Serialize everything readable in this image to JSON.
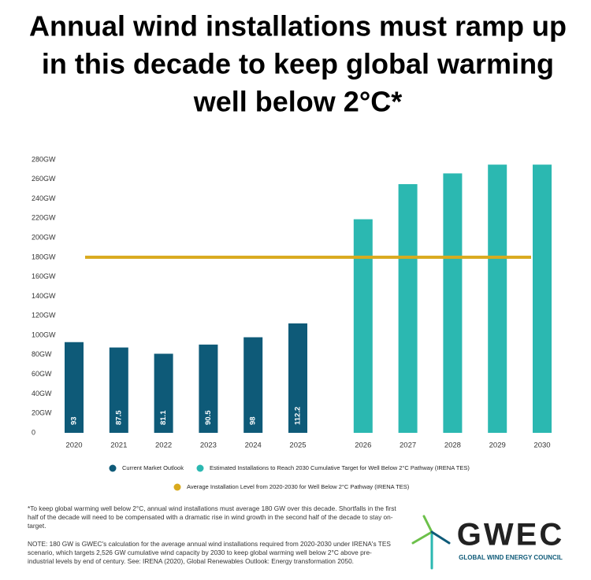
{
  "chart_data": {
    "type": "bar",
    "title": [
      "Annual wind installations must ramp up",
      "in this decade to keep global warming",
      "well below 2°C*"
    ],
    "categories": [
      "2020",
      "2021",
      "2022",
      "2023",
      "2024",
      "2025",
      "2026",
      "2027",
      "2028",
      "2029",
      "2030"
    ],
    "series": [
      {
        "name": "Current Market Outlook",
        "color": "#0e5a78",
        "values": [
          93,
          87.5,
          81.1,
          90.5,
          98,
          112.2,
          null,
          null,
          null,
          null,
          null
        ],
        "value_labels": [
          "93",
          "87.5",
          "81.1",
          "90.5",
          "98",
          "112.2",
          null,
          null,
          null,
          null,
          null
        ]
      },
      {
        "name": "Estimated Installations to Reach 2030 Cumulative Target for Well Below 2°C Pathway (IRENA TES)",
        "color": "#2bb8b1",
        "values": [
          null,
          null,
          null,
          null,
          null,
          null,
          219,
          255,
          266,
          275,
          275
        ]
      }
    ],
    "reference_line": {
      "name": "Average Installation Level from 2020-2030 for Well Below 2°C Pathway (IRENA TES)",
      "value": 180,
      "color": "#d9aa1e"
    },
    "ylim": [
      0,
      280
    ],
    "yticks": [
      0,
      {
        "value": 20,
        "label": "20GW"
      },
      {
        "value": 40,
        "label": "40GW"
      },
      {
        "value": 60,
        "label": "60GW"
      },
      {
        "value": 80,
        "label": "80GW"
      },
      {
        "value": 100,
        "label": "100GW"
      },
      {
        "value": 120,
        "label": "120GW"
      },
      {
        "value": 140,
        "label": "140GW"
      },
      {
        "value": 160,
        "label": "160GW"
      },
      {
        "value": 180,
        "label": "180GW"
      },
      {
        "value": 200,
        "label": "200GW"
      },
      {
        "value": 220,
        "label": "220GW"
      },
      {
        "value": 240,
        "label": "240GW"
      },
      {
        "value": 260,
        "label": "260GW"
      },
      {
        "value": 280,
        "label": "280GW"
      }
    ],
    "grid": false
  },
  "notes": [
    "*To keep global warming well below 2°C, annual wind installations must average 180 GW over this decade. Shortfalls in the first half of the decade will need to be compensated with a dramatic rise in wind growth in the second half of the decade to stay on-target.",
    "NOTE: 180 GW is GWEC's calculation for the average annual wind installations required from 2020-2030 under IRENA's TES scenario, which targets 2,526 GW cumulative wind capacity by 2030 to keep global warming well below 2°C above pre-industrial levels by end of century. See: IRENA (2020), Global Renewables Outlook: Energy transformation 2050."
  ],
  "logo": {
    "name": "GWEC",
    "tagline": "GLOBAL WIND ENERGY COUNCIL"
  }
}
